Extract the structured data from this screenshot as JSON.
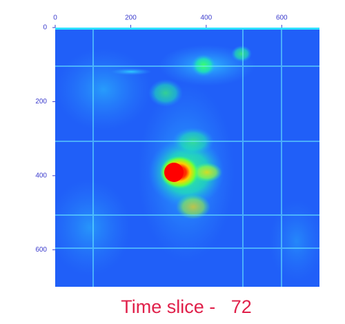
{
  "chart_data": {
    "type": "heatmap",
    "title": "Time slice -   72",
    "xlim": [
      0,
      700
    ],
    "ylim": [
      0,
      700
    ],
    "y_inverted": true,
    "x_axis_position": "top",
    "xticks": [
      0,
      200,
      400,
      600
    ],
    "yticks": [
      0,
      200,
      400,
      600
    ]
  }
}
